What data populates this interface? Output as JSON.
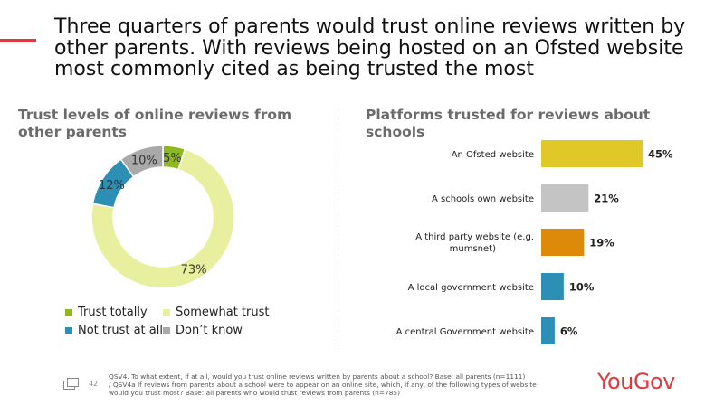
{
  "headline": "Three quarters of parents would trust online reviews written by other parents. With reviews being hosted on an Ofsted website most commonly cited as being trusted the most",
  "left_title": "Trust levels of online reviews from other parents",
  "right_title": "Platforms trusted for reviews about schools",
  "chart_data": [
    {
      "type": "pie",
      "title": "Trust levels of online reviews from other parents",
      "categories": [
        "Trust totally",
        "Somewhat trust",
        "Not trust at all",
        "Don't know"
      ],
      "values": [
        5,
        73,
        12,
        10
      ],
      "labels": [
        "5%",
        "73%",
        "12%",
        "10%"
      ],
      "colors": [
        "#8db81f",
        "#e8f0a0",
        "#2e8fb5",
        "#a9a9a9"
      ],
      "donut": true,
      "legend_position": "bottom",
      "legend_labels": [
        "Trust totally",
        "Somewhat trust",
        "Not trust at all",
        "Don’t know"
      ]
    },
    {
      "type": "bar",
      "orientation": "horizontal",
      "title": "Platforms trusted for reviews about schools",
      "categories": [
        "An Ofsted website",
        "A schools own website",
        "A third party website (e.g. mumsnet)",
        "A local government website",
        "A central Government website"
      ],
      "values": [
        45,
        21,
        19,
        10,
        6
      ],
      "labels": [
        "45%",
        "21%",
        "19%",
        "10%",
        "6%"
      ],
      "colors": [
        "#e0c829",
        "#c4c4c4",
        "#dd8a0a",
        "#2e8fb5",
        "#2e8fb5"
      ],
      "xlim": [
        0,
        45
      ],
      "grid": false
    }
  ],
  "footer": {
    "page_number": "42",
    "footnote_line1": "QSV4. To what extent, if at all, would you trust online reviews written by parents about a school? Base: all parents (n=1111)",
    "footnote_line2": "/ QSV4a If reviews from parents about a school were to appear  on an online site, which, if any, of the following types of website would you trust most? Base: all parents who would trust reviews from parents (n=785)",
    "logo": "YouGov",
    "icon": "slides-icon"
  }
}
